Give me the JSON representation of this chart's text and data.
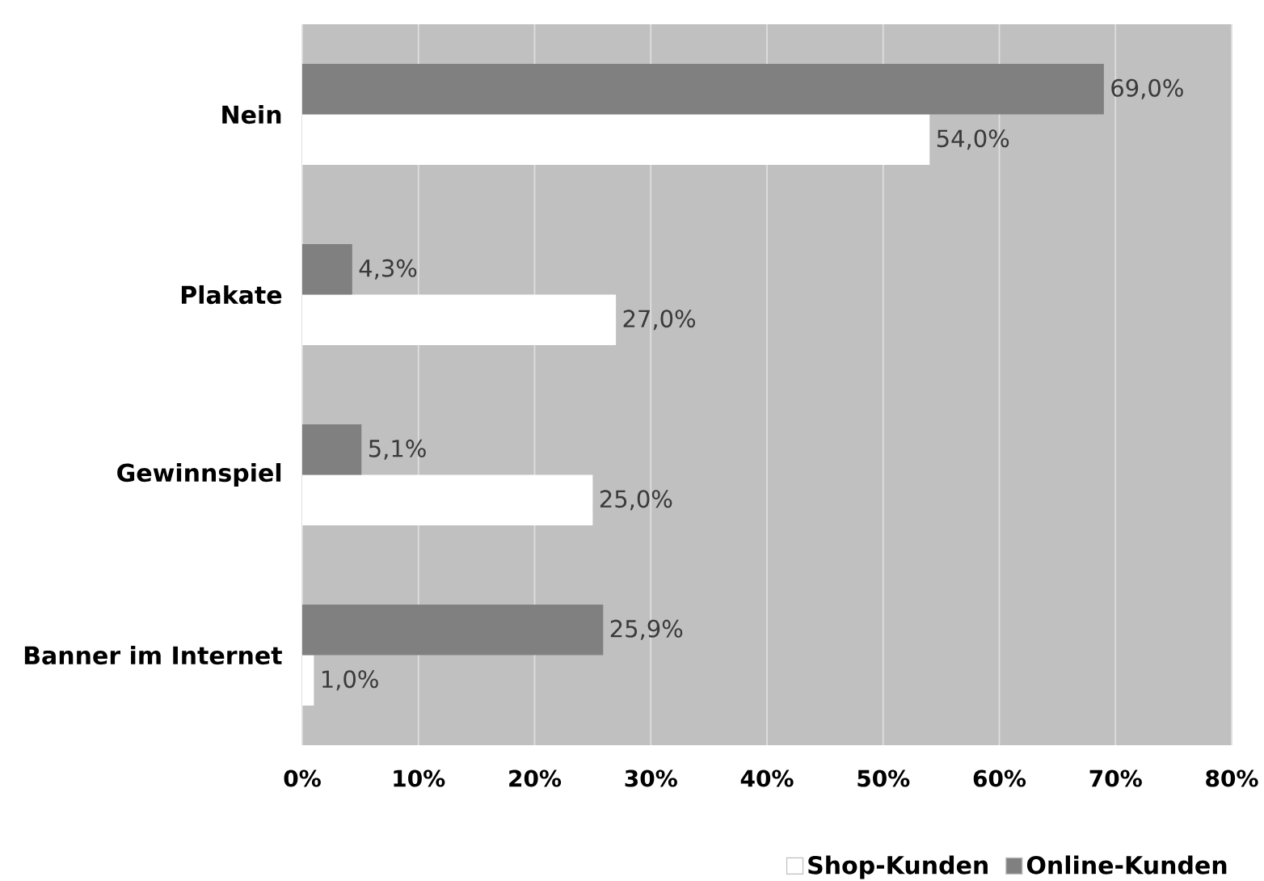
{
  "chart_data": {
    "type": "bar",
    "orientation": "horizontal",
    "categories": [
      "Nein",
      "Plakate",
      "Gewinnspiel",
      "Banner im Internet"
    ],
    "series": [
      {
        "name": "Shop-Kunden",
        "color": "#ffffff",
        "values": [
          54,
          27,
          25,
          1
        ],
        "value_labels": [
          "54,0%",
          "27,0%",
          "25,0%",
          "1,0%"
        ]
      },
      {
        "name": "Online-Kunden",
        "color": "#808080",
        "values": [
          69,
          4.3,
          5.1,
          25.9
        ],
        "value_labels": [
          "69,0%",
          "4,3%",
          "5,1%",
          "25,9%"
        ]
      }
    ],
    "xlim": [
      0,
      80
    ],
    "xticks": [
      {
        "value": 0,
        "label": "0%"
      },
      {
        "value": 10,
        "label": "10%"
      },
      {
        "value": 20,
        "label": "20%"
      },
      {
        "value": 30,
        "label": "30%"
      },
      {
        "value": 40,
        "label": "40%"
      },
      {
        "value": 50,
        "label": "50%"
      },
      {
        "value": 60,
        "label": "60%"
      },
      {
        "value": 70,
        "label": "70%"
      },
      {
        "value": 80,
        "label": "80%"
      }
    ],
    "grid": "x",
    "legend": "bottom right"
  }
}
